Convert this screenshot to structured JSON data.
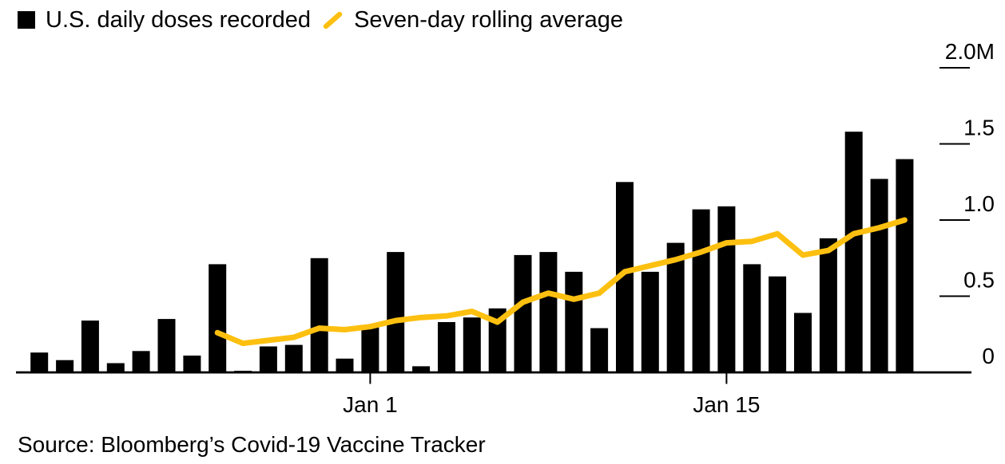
{
  "page": {
    "background_color": "#ffffff",
    "text_color": "#000000"
  },
  "legend": {
    "items": [
      {
        "label": "U.S. daily doses recorded",
        "swatch": "square",
        "color": "#000000"
      },
      {
        "label": "Seven-day rolling average",
        "swatch": "slash",
        "color": "#fdc010"
      }
    ]
  },
  "source": {
    "text": "Source: Bloomberg’s Covid-19 Vaccine Tracker"
  },
  "chart_data": {
    "type": "bar+line",
    "title": "",
    "y_unit": "doses, millions",
    "ylim": [
      0,
      2.0
    ],
    "grid": false,
    "legend_position": "top-left",
    "y_axis_side": "right",
    "y_ticks": [
      {
        "label": "2.0M",
        "value": 2.0
      },
      {
        "label": "1.5",
        "value": 1.5
      },
      {
        "label": "1.0",
        "value": 1.0
      },
      {
        "label": "0.5",
        "value": 0.5
      },
      {
        "label": "0",
        "value": 0.0
      }
    ],
    "x_ticks": [
      {
        "label": "Jan 1",
        "bar_index": 13
      },
      {
        "label": "Jan 15",
        "bar_index": 27
      }
    ],
    "series": [
      {
        "name": "U.S. daily doses recorded",
        "type": "bar",
        "color": "#000000",
        "unit": "millions",
        "values": [
          0.13,
          0.08,
          0.34,
          0.06,
          0.14,
          0.35,
          0.11,
          0.71,
          0.01,
          0.17,
          0.18,
          0.75,
          0.09,
          0.3,
          0.79,
          0.04,
          0.33,
          0.36,
          0.42,
          0.77,
          0.79,
          0.66,
          0.29,
          1.25,
          0.66,
          0.85,
          1.07,
          1.09,
          0.71,
          0.63,
          0.39,
          0.88,
          1.58,
          1.27,
          1.4
        ]
      },
      {
        "name": "Seven-day rolling average",
        "type": "line",
        "color": "#fdc010",
        "unit": "millions",
        "start_index": 7,
        "values": [
          0.26,
          0.19,
          0.21,
          0.23,
          0.29,
          0.28,
          0.3,
          0.34,
          0.36,
          0.37,
          0.4,
          0.33,
          0.46,
          0.52,
          0.48,
          0.52,
          0.66,
          0.7,
          0.74,
          0.79,
          0.85,
          0.86,
          0.91,
          0.77,
          0.8,
          0.91,
          0.95,
          1.0
        ]
      }
    ]
  }
}
